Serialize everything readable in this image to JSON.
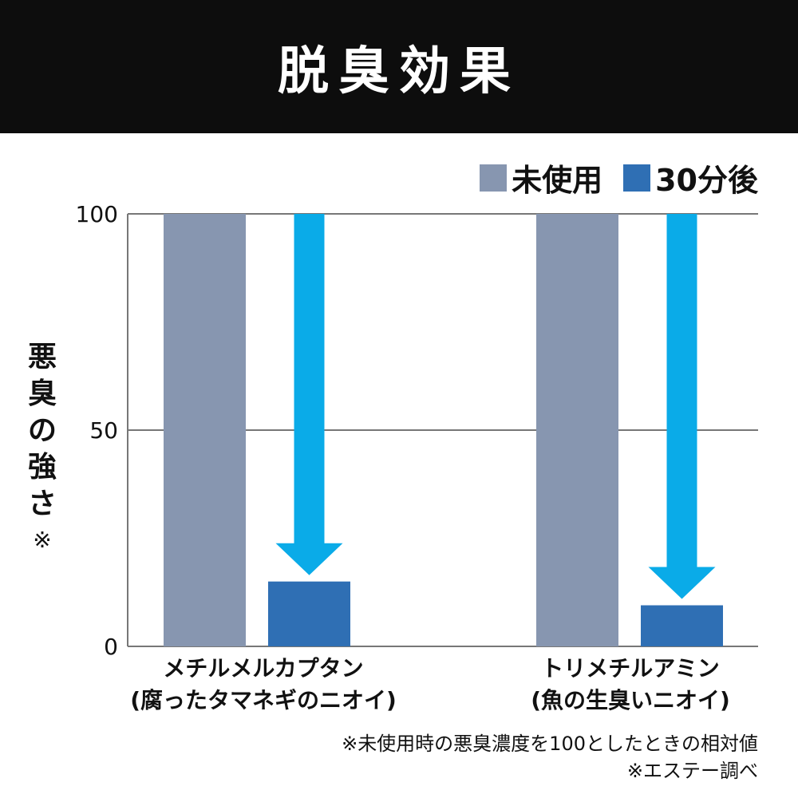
{
  "header": {
    "title": "脱臭効果"
  },
  "y_axis_label_chars": [
    "悪",
    "臭",
    "の",
    "強",
    "さ"
  ],
  "y_axis_label_mark": "※",
  "notes": {
    "line1": "※未使用時の悪臭濃度を100としたときの相対値",
    "line2": "※エステー調べ"
  },
  "colors": {
    "before": "#8796b0",
    "after": "#2f6fb4",
    "arrow": "#0aabe8",
    "grid": "#777777"
  },
  "chart_data": {
    "type": "bar",
    "title": "脱臭効果",
    "ylabel": "悪臭の強さ※",
    "ylim": [
      0,
      100
    ],
    "yticks": [
      "0",
      "50",
      "100"
    ],
    "grid": true,
    "legend_position": "top-right",
    "categories": [
      {
        "line1": "メチルメルカプタン",
        "line2": "(腐ったタマネギのニオイ)"
      },
      {
        "line1": "トリメチルアミン",
        "line2": "(魚の生臭いニオイ)"
      }
    ],
    "series": [
      {
        "name": "未使用",
        "values": [
          100,
          100
        ]
      },
      {
        "name": "30分後",
        "values": [
          15,
          9.5
        ]
      }
    ]
  }
}
